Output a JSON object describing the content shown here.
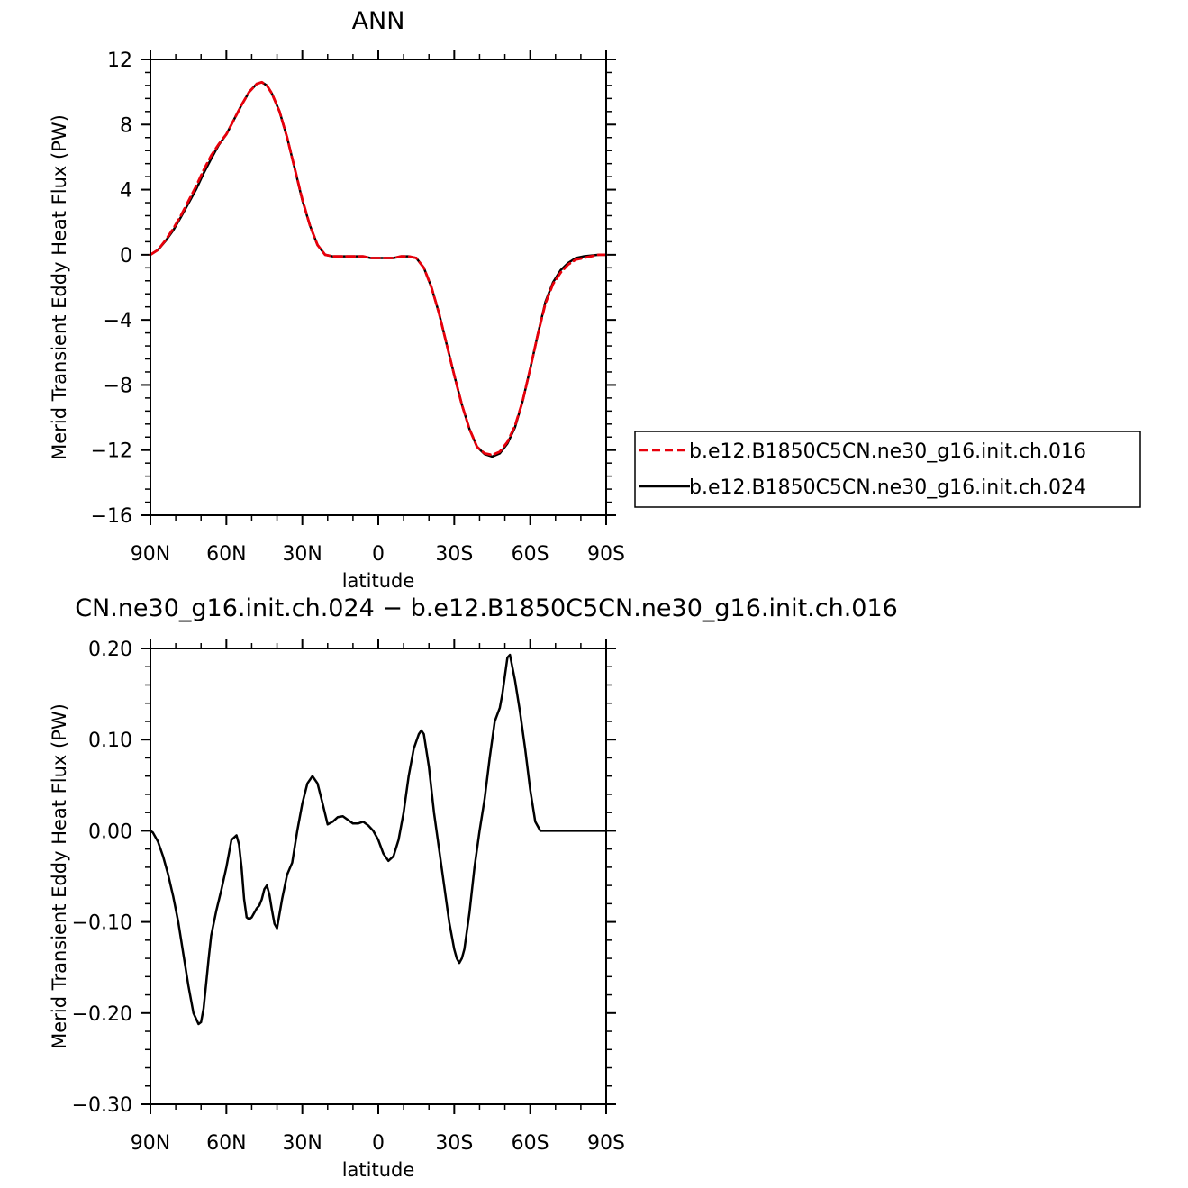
{
  "colors": {
    "background": "#ffffff",
    "axis": "#000000",
    "series_016": "#e8000b",
    "series_024": "#000000"
  },
  "chart_data": [
    {
      "type": "line",
      "title": "ANN",
      "xlabel": "latitude",
      "ylabel": "Merid Transient Eddy Heat Flux (PW)",
      "xlim": [
        -90,
        90
      ],
      "ylim": [
        -16,
        12
      ],
      "x_ticks": [
        -90,
        -60,
        -30,
        0,
        30,
        60,
        90
      ],
      "x_tick_labels": [
        "90N",
        "60N",
        "30N",
        "0",
        "30S",
        "60S",
        "90S"
      ],
      "y_ticks": [
        -16,
        -12,
        -8,
        -4,
        0,
        4,
        8,
        12
      ],
      "y_tick_labels": [
        "−16",
        "−12",
        "−8",
        "−4",
        "0",
        "4",
        "8",
        "12"
      ],
      "grid": false,
      "legend_position": "right",
      "series": [
        {
          "name": "b.e12.B1850C5CN.ne30_g16.init.ch.016",
          "style": "dashed",
          "color": "#e8000b",
          "x": [
            -90,
            -87,
            -84,
            -81,
            -78,
            -75,
            -72,
            -69,
            -66,
            -63,
            -60,
            -57,
            -54,
            -51,
            -48,
            -46,
            -44,
            -42,
            -39,
            -36,
            -33,
            -30,
            -27,
            -24,
            -21,
            -18,
            -15,
            -12,
            -9,
            -6,
            -3,
            0,
            3,
            6,
            9,
            12,
            15,
            18,
            21,
            24,
            27,
            30,
            33,
            36,
            39,
            42,
            45,
            48,
            51,
            54,
            57,
            60,
            63,
            66,
            69,
            72,
            75,
            78,
            81,
            84,
            87,
            90
          ],
          "y": [
            0.0,
            0.3,
            0.9,
            1.6,
            2.4,
            3.3,
            4.2,
            5.2,
            6.1,
            6.8,
            7.4,
            8.3,
            9.2,
            10.0,
            10.5,
            10.6,
            10.4,
            9.9,
            8.8,
            7.2,
            5.3,
            3.4,
            1.8,
            0.6,
            0.0,
            -0.1,
            -0.1,
            -0.1,
            -0.1,
            -0.1,
            -0.2,
            -0.2,
            -0.2,
            -0.2,
            -0.1,
            -0.1,
            -0.2,
            -0.8,
            -2.0,
            -3.6,
            -5.5,
            -7.4,
            -9.2,
            -10.7,
            -11.8,
            -12.2,
            -12.3,
            -12.1,
            -11.5,
            -10.5,
            -9.0,
            -7.0,
            -4.9,
            -3.0,
            -1.8,
            -1.1,
            -0.6,
            -0.3,
            -0.2,
            -0.1,
            0.0,
            0.0
          ]
        },
        {
          "name": "b.e12.B1850C5CN.ne30_g16.init.ch.024",
          "style": "solid",
          "color": "#000000",
          "x": [
            -90,
            -87,
            -84,
            -81,
            -78,
            -75,
            -72,
            -69,
            -66,
            -63,
            -60,
            -57,
            -54,
            -51,
            -48,
            -46,
            -44,
            -42,
            -39,
            -36,
            -33,
            -30,
            -27,
            -24,
            -21,
            -18,
            -15,
            -12,
            -9,
            -6,
            -3,
            0,
            3,
            6,
            9,
            12,
            15,
            18,
            21,
            24,
            27,
            30,
            33,
            36,
            39,
            42,
            45,
            48,
            51,
            54,
            57,
            60,
            63,
            66,
            69,
            72,
            75,
            78,
            81,
            84,
            87,
            90
          ],
          "y": [
            0.0,
            0.3,
            0.85,
            1.5,
            2.3,
            3.15,
            4.0,
            5.0,
            5.9,
            6.75,
            7.4,
            8.3,
            9.2,
            10.0,
            10.5,
            10.6,
            10.4,
            9.9,
            8.8,
            7.2,
            5.3,
            3.35,
            1.8,
            0.6,
            0.0,
            -0.1,
            -0.1,
            -0.1,
            -0.1,
            -0.1,
            -0.2,
            -0.2,
            -0.2,
            -0.2,
            -0.1,
            -0.1,
            -0.2,
            -0.8,
            -2.0,
            -3.6,
            -5.5,
            -7.4,
            -9.2,
            -10.7,
            -11.8,
            -12.25,
            -12.4,
            -12.2,
            -11.6,
            -10.6,
            -9.0,
            -7.0,
            -4.9,
            -2.9,
            -1.7,
            -0.95,
            -0.5,
            -0.2,
            -0.1,
            -0.05,
            0.0,
            0.0
          ]
        }
      ]
    },
    {
      "type": "line",
      "title": "CN.ne30_g16.init.ch.024 − b.e12.B1850C5CN.ne30_g16.init.ch.016",
      "xlabel": "latitude",
      "ylabel": "Merid Transient Eddy Heat Flux (PW)",
      "xlim": [
        -90,
        90
      ],
      "ylim": [
        -0.3,
        0.2
      ],
      "x_ticks": [
        -90,
        -60,
        -30,
        0,
        30,
        60,
        90
      ],
      "x_tick_labels": [
        "90N",
        "60N",
        "30N",
        "0",
        "30S",
        "60S",
        "90S"
      ],
      "y_ticks": [
        -0.3,
        -0.2,
        -0.1,
        0.0,
        0.1,
        0.2
      ],
      "y_tick_labels": [
        "−0.30",
        "−0.20",
        "−0.10",
        "0.00",
        "0.10",
        "0.20"
      ],
      "grid": false,
      "series": [
        {
          "style": "solid",
          "color": "#000000",
          "x": [
            -90,
            -89,
            -87,
            -85,
            -83,
            -81,
            -79,
            -77,
            -75,
            -73,
            -71,
            -70,
            -69,
            -68,
            -67,
            -66,
            -64,
            -62,
            -60,
            -58,
            -56,
            -55,
            -54,
            -53,
            -52,
            -51,
            -50,
            -49,
            -48,
            -47,
            -46,
            -45,
            -44,
            -43,
            -42,
            -41,
            -40,
            -38,
            -36,
            -34,
            -32,
            -30,
            -28,
            -26,
            -24,
            -22,
            -20,
            -18,
            -16,
            -14,
            -12,
            -10,
            -8,
            -6,
            -4,
            -2,
            0,
            2,
            4,
            6,
            8,
            10,
            12,
            14,
            16,
            17,
            18,
            20,
            22,
            24,
            26,
            28,
            30,
            31,
            32,
            33,
            34,
            36,
            38,
            40,
            42,
            44,
            46,
            48,
            49,
            50,
            51,
            52,
            54,
            56,
            58,
            60,
            62,
            64,
            66,
            68,
            70,
            72,
            73,
            74,
            75,
            76,
            78,
            80,
            82,
            84,
            86,
            88,
            89,
            90
          ],
          "y": [
            0.0,
            -0.002,
            -0.012,
            -0.028,
            -0.048,
            -0.072,
            -0.1,
            -0.135,
            -0.17,
            -0.2,
            -0.212,
            -0.21,
            -0.195,
            -0.168,
            -0.14,
            -0.115,
            -0.088,
            -0.065,
            -0.04,
            -0.01,
            -0.005,
            -0.015,
            -0.04,
            -0.075,
            -0.095,
            -0.097,
            -0.095,
            -0.09,
            -0.085,
            -0.082,
            -0.075,
            -0.064,
            -0.06,
            -0.07,
            -0.087,
            -0.102,
            -0.107,
            -0.075,
            -0.048,
            -0.035,
            0.0,
            0.03,
            0.052,
            0.06,
            0.052,
            0.03,
            0.007,
            0.01,
            0.015,
            0.016,
            0.012,
            0.008,
            0.008,
            0.01,
            0.006,
            0.0,
            -0.01,
            -0.025,
            -0.033,
            -0.028,
            -0.01,
            0.02,
            0.06,
            0.09,
            0.106,
            0.11,
            0.106,
            0.07,
            0.02,
            -0.02,
            -0.06,
            -0.1,
            -0.13,
            -0.14,
            -0.145,
            -0.14,
            -0.13,
            -0.09,
            -0.04,
            0.0,
            0.035,
            0.08,
            0.12,
            0.135,
            0.15,
            0.17,
            0.19,
            0.193,
            0.165,
            0.13,
            0.09,
            0.045,
            0.01,
            0.0,
            0.0,
            0.0,
            0.0,
            0.0,
            0.0,
            0.0,
            0.0,
            0.0,
            0.0,
            0.0,
            0.0,
            0.0,
            0.0,
            0.0,
            0.0,
            0.0
          ]
        }
      ]
    }
  ]
}
